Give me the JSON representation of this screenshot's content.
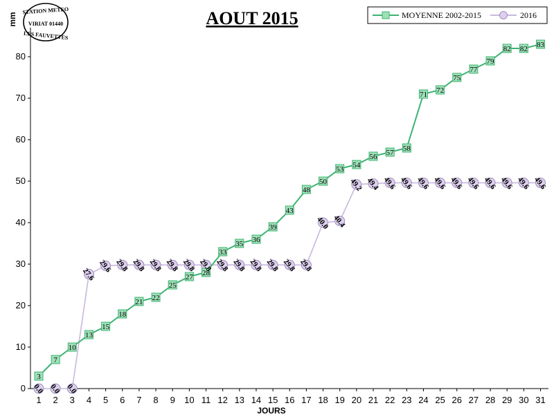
{
  "chart_data": {
    "type": "line",
    "title": "AOUT 2015",
    "xlabel": "JOURS",
    "ylabel": "mm",
    "categories": [
      1,
      2,
      3,
      4,
      5,
      6,
      7,
      8,
      9,
      10,
      11,
      12,
      13,
      14,
      15,
      16,
      17,
      18,
      19,
      20,
      21,
      22,
      23,
      24,
      25,
      26,
      27,
      28,
      29,
      30,
      31
    ],
    "ylim": [
      0,
      88
    ],
    "yticks": [
      0,
      10,
      20,
      30,
      40,
      50,
      60,
      70,
      80
    ],
    "grid": false,
    "legend_position": "top-right",
    "series": [
      {
        "name": "MOYENNE 2002-2015",
        "color": "#3cb371",
        "fill": "#9fe0b8",
        "marker": "square",
        "values": [
          3,
          7,
          10,
          13,
          15,
          18,
          21,
          22,
          25,
          27,
          28,
          33,
          35,
          36,
          39,
          43,
          48,
          50,
          53,
          54,
          56,
          57,
          58,
          71,
          72,
          75,
          77,
          79,
          82,
          82,
          83
        ],
        "labels": [
          "3",
          "7",
          "10",
          "13",
          "15",
          "18",
          "21",
          "22",
          "25",
          "27",
          "28",
          "33",
          "35",
          "36",
          "39",
          "43",
          "48",
          "50",
          "53",
          "54",
          "56",
          "57",
          "58",
          "71",
          "72",
          "75",
          "77",
          "79",
          "82",
          "82",
          "83"
        ]
      },
      {
        "name": "2016",
        "color": "#c9b8dc",
        "fill": "#ddd0ee",
        "marker": "circle",
        "values": [
          0,
          0,
          0,
          27.6,
          29.6,
          29.8,
          29.8,
          29.8,
          29.8,
          29.8,
          29.8,
          29.8,
          29.8,
          29.8,
          29.8,
          29.8,
          29.8,
          40.0,
          40.4,
          49.2,
          49.4,
          49.6,
          49.6,
          49.6,
          49.6,
          49.6,
          49.6,
          49.6,
          49.6,
          49.6,
          49.6
        ],
        "labels": [
          "0.0",
          "0.0",
          "0.0",
          "27.6",
          "29.6",
          "29.8",
          "29.8",
          "29.8",
          "29.8",
          "29.8",
          "29.8",
          "29.8",
          "29.8",
          "29.8",
          "29.8",
          "29.8",
          "29.8",
          "40.0",
          "40.4",
          "49.2",
          "49.4",
          "49.6",
          "49.6",
          "49.6",
          "49.6",
          "49.6",
          "49.6",
          "49.6",
          "49.6",
          "49.6",
          "49.6"
        ]
      }
    ]
  },
  "stamp": {
    "line1": "STATION METEO",
    "line2": "VIRIAT 01440",
    "line3": "LES FAUVETTES"
  }
}
